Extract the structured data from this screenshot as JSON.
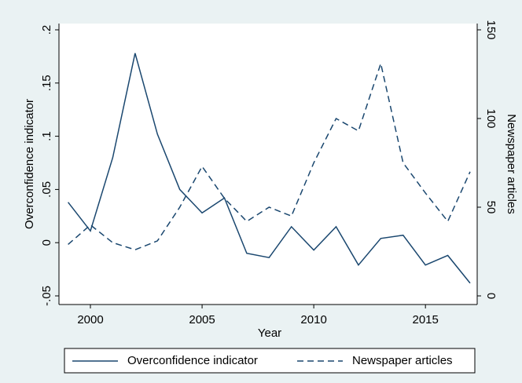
{
  "chart_data": {
    "type": "line",
    "x": [
      1999,
      2000,
      2001,
      2002,
      2003,
      2004,
      2005,
      2006,
      2007,
      2008,
      2009,
      2010,
      2011,
      2012,
      2013,
      2014,
      2015,
      2016,
      2017
    ],
    "series": [
      {
        "name": "Overconfidence indicator",
        "color": "#1a476f",
        "line_style": "solid",
        "values": [
          0.038,
          0.011,
          0.08,
          0.178,
          0.102,
          0.05,
          0.028,
          0.042,
          -0.01,
          -0.014,
          0.015,
          -0.007,
          0.015,
          -0.021,
          0.004,
          0.007,
          -0.021,
          -0.012,
          -0.038
        ]
      },
      {
        "name": "Newspaper articles",
        "color": "#1a476f",
        "line_style": "dashed",
        "axis": "y2",
        "values": [
          29,
          40,
          30,
          26,
          31,
          50,
          73,
          55,
          42,
          50,
          45,
          75,
          100,
          93,
          131,
          75,
          58,
          42,
          70
        ]
      }
    ],
    "xlabel": "Year",
    "ylabel": "Overconfidence indicator",
    "y2label": "Newspaper articles",
    "xlim": [
      1999,
      2017
    ],
    "xticks": [
      2000,
      2005,
      2010,
      2015
    ],
    "ylim": [
      -0.05,
      0.2
    ],
    "yticks": [
      {
        "value": -0.05,
        "label": "-.05"
      },
      0,
      {
        "value": 0.05,
        "label": ".05"
      },
      {
        "value": 0.1,
        "label": ".1"
      },
      {
        "value": 0.15,
        "label": ".15"
      },
      {
        "value": 0.2,
        "label": ".2"
      }
    ],
    "y2lim": [
      0,
      150
    ],
    "y2ticks": [
      0,
      50,
      100,
      150
    ],
    "grid": false,
    "legend": "bottom"
  }
}
